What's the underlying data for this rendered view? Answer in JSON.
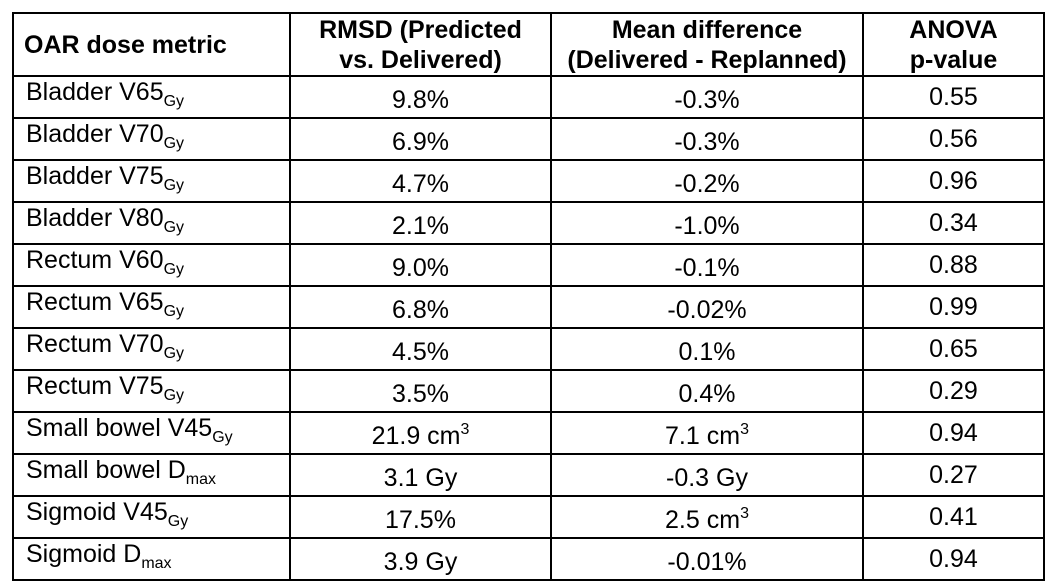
{
  "headers": {
    "metric": "OAR dose metric",
    "rmsd_line1": "RMSD (Predicted",
    "rmsd_line2": "vs. Delivered)",
    "mean_line1": "Mean difference",
    "mean_line2": "(Delivered - Replanned)",
    "anova_line1": "ANOVA",
    "anova_line2": "p-value"
  },
  "rows": [
    {
      "metric_base": "Bladder V65",
      "metric_sub": "Gy",
      "rmsd": "9.8%",
      "rmsd_sup": "",
      "mean": "-0.3%",
      "mean_sup": "",
      "p": "0.55"
    },
    {
      "metric_base": "Bladder V70",
      "metric_sub": "Gy",
      "rmsd": "6.9%",
      "rmsd_sup": "",
      "mean": "-0.3%",
      "mean_sup": "",
      "p": "0.56"
    },
    {
      "metric_base": "Bladder V75",
      "metric_sub": "Gy",
      "rmsd": "4.7%",
      "rmsd_sup": "",
      "mean": "-0.2%",
      "mean_sup": "",
      "p": "0.96"
    },
    {
      "metric_base": "Bladder V80",
      "metric_sub": "Gy",
      "rmsd": "2.1%",
      "rmsd_sup": "",
      "mean": "-1.0%",
      "mean_sup": "",
      "p": "0.34"
    },
    {
      "metric_base": "Rectum V60",
      "metric_sub": "Gy",
      "rmsd": "9.0%",
      "rmsd_sup": "",
      "mean": "-0.1%",
      "mean_sup": "",
      "p": "0.88"
    },
    {
      "metric_base": "Rectum V65",
      "metric_sub": "Gy",
      "rmsd": "6.8%",
      "rmsd_sup": "",
      "mean": "-0.02%",
      "mean_sup": "",
      "p": "0.99"
    },
    {
      "metric_base": "Rectum V70",
      "metric_sub": "Gy",
      "rmsd": "4.5%",
      "rmsd_sup": "",
      "mean": "0.1%",
      "mean_sup": "",
      "p": "0.65"
    },
    {
      "metric_base": "Rectum V75",
      "metric_sub": "Gy",
      "rmsd": "3.5%",
      "rmsd_sup": "",
      "mean": "0.4%",
      "mean_sup": "",
      "p": "0.29"
    },
    {
      "metric_base": "Small bowel V45",
      "metric_sub": "Gy",
      "rmsd": "21.9 cm",
      "rmsd_sup": "3",
      "mean": "7.1 cm",
      "mean_sup": "3",
      "p": "0.94"
    },
    {
      "metric_base": "Small bowel D",
      "metric_sub": "max",
      "rmsd": "3.1 Gy",
      "rmsd_sup": "",
      "mean": "-0.3 Gy",
      "mean_sup": "",
      "p": "0.27"
    },
    {
      "metric_base": "Sigmoid V45",
      "metric_sub": "Gy",
      "rmsd": "17.5%",
      "rmsd_sup": "",
      "mean": "2.5 cm",
      "mean_sup": "3",
      "p": "0.41"
    },
    {
      "metric_base": "Sigmoid D",
      "metric_sub": "max",
      "rmsd": "3.9 Gy",
      "rmsd_sup": "",
      "mean": "-0.01%",
      "mean_sup": "",
      "p": "0.94"
    }
  ]
}
